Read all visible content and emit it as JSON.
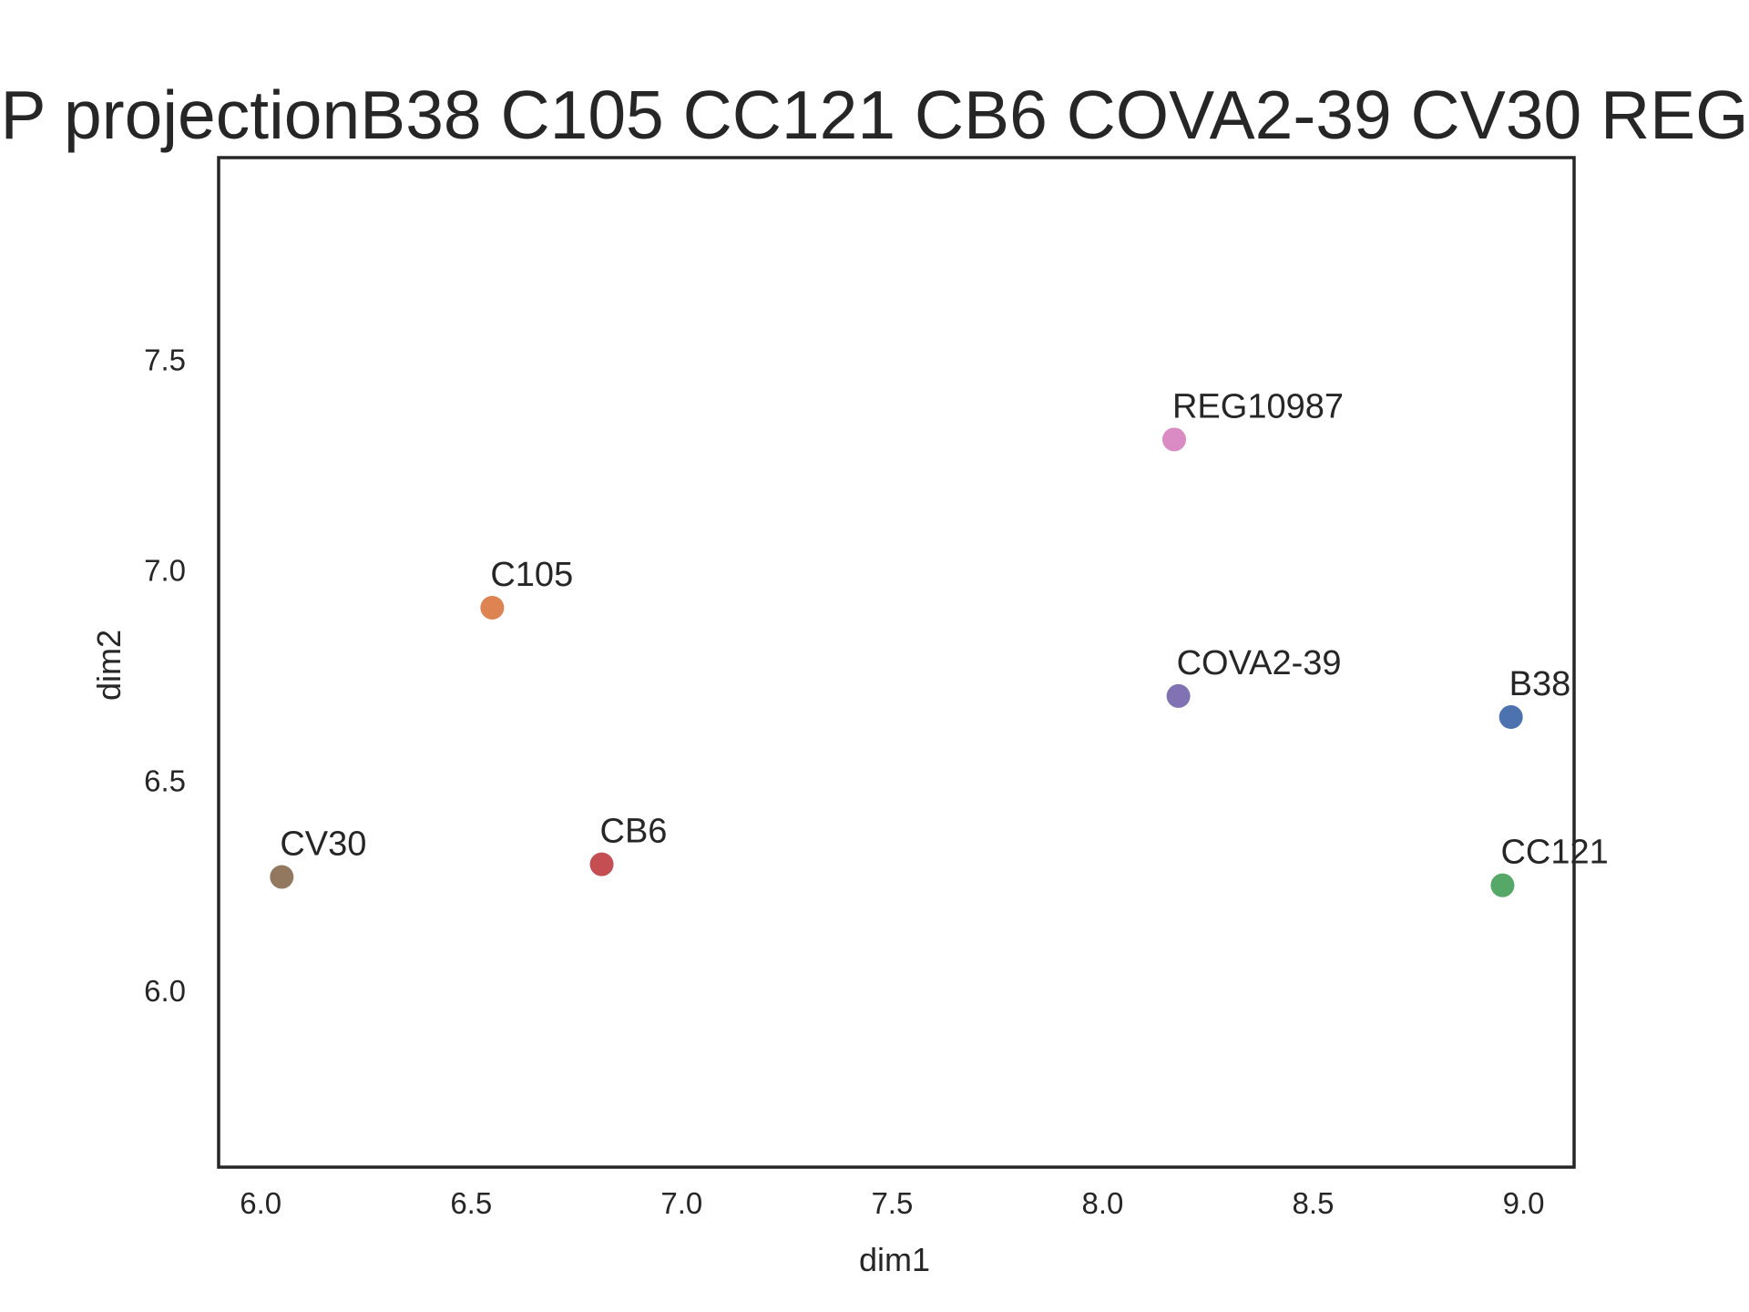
{
  "chart_data": {
    "type": "scatter",
    "title": "P projectionB38 C105 CC121 CB6 COVA2-39 CV30 REG",
    "xlabel": "dim1",
    "ylabel": "dim2",
    "xlim": [
      5.9,
      9.12
    ],
    "ylim": [
      5.58,
      7.98
    ],
    "xticks": [
      "6.0",
      "6.5",
      "7.0",
      "7.5",
      "8.0",
      "8.5",
      "9.0"
    ],
    "yticks": [
      "6.0",
      "6.5",
      "7.0",
      "7.5"
    ],
    "grid": false,
    "legend": "none",
    "points": [
      {
        "label": "B38",
        "x": 8.97,
        "y": 6.65,
        "color": "#4c72b0"
      },
      {
        "label": "C105",
        "x": 6.55,
        "y": 6.91,
        "color": "#dd8452"
      },
      {
        "label": "CC121",
        "x": 8.95,
        "y": 6.25,
        "color": "#55a868"
      },
      {
        "label": "CB6",
        "x": 6.81,
        "y": 6.3,
        "color": "#c44e52"
      },
      {
        "label": "COVA2-39",
        "x": 8.18,
        "y": 6.7,
        "color": "#8172b3"
      },
      {
        "label": "CV30",
        "x": 6.05,
        "y": 6.27,
        "color": "#937860"
      },
      {
        "label": "REG10987",
        "x": 8.17,
        "y": 7.31,
        "color": "#da8bc3"
      }
    ]
  }
}
